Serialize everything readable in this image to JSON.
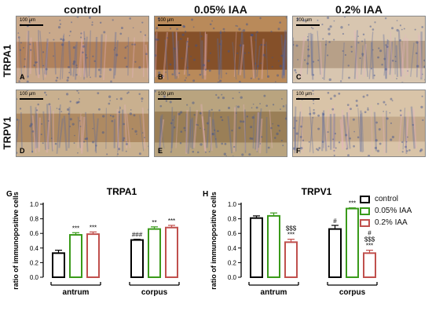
{
  "micrographs": {
    "columns": [
      "control",
      "0.05% IAA",
      "0.2% IAA"
    ],
    "rows": [
      "TRPA1",
      "TRPV1"
    ],
    "scale_label": "100 µm",
    "panels": [
      {
        "label": "A",
        "tint": "#c9a98b",
        "stain": "#8b4513",
        "level": 0.25
      },
      {
        "label": "B",
        "tint": "#b98a5a",
        "stain": "#6b3410",
        "level": 0.75
      },
      {
        "label": "C",
        "tint": "#d8c6b0",
        "stain": "#8a6a50",
        "level": 0.3
      },
      {
        "label": "D",
        "tint": "#c9b08f",
        "stain": "#8b5a2b",
        "level": 0.35
      },
      {
        "label": "E",
        "tint": "#b9a47f",
        "stain": "#7a5a30",
        "level": 0.45
      },
      {
        "label": "F",
        "tint": "#d9c4a8",
        "stain": "#9a7a58",
        "level": 0.2
      }
    ]
  },
  "legend": {
    "items": [
      {
        "label": "control",
        "color": "#000000"
      },
      {
        "label": "0.05% IAA",
        "color": "#3a9a1a"
      },
      {
        "label": "0.2% IAA",
        "color": "#c0504d"
      }
    ]
  },
  "chart_data": [
    {
      "type": "bar",
      "panel_label": "G",
      "title": "TRPA1",
      "ylabel": "ratio of immunopositive cells",
      "ylim": [
        0,
        1.0
      ],
      "yticks": [
        "0.0",
        "0.2",
        "0.4",
        "0.6",
        "0.8",
        "1.0"
      ],
      "categories": [
        "antrum",
        "corpus"
      ],
      "series": [
        {
          "name": "control",
          "values": [
            0.33,
            0.51
          ],
          "errors": [
            0.04,
            0.01
          ],
          "annotations": [
            "",
            "###"
          ]
        },
        {
          "name": "0.05% IAA",
          "values": [
            0.58,
            0.66
          ],
          "errors": [
            0.03,
            0.03
          ],
          "annotations": [
            "***",
            "**"
          ]
        },
        {
          "name": "0.2% IAA",
          "values": [
            0.59,
            0.68
          ],
          "errors": [
            0.03,
            0.03
          ],
          "annotations": [
            "***",
            "***"
          ]
        }
      ]
    },
    {
      "type": "bar",
      "panel_label": "H",
      "title": "TRPV1",
      "ylabel": "ratio of immunopositive cells",
      "ylim": [
        0,
        1.0
      ],
      "yticks": [
        "0.0",
        "0.2",
        "0.4",
        "0.6",
        "0.8",
        "1.0"
      ],
      "categories": [
        "antrum",
        "corpus"
      ],
      "series": [
        {
          "name": "control",
          "values": [
            0.81,
            0.66
          ],
          "errors": [
            0.03,
            0.05
          ],
          "annotations": [
            "",
            "#"
          ]
        },
        {
          "name": "0.05% IAA",
          "values": [
            0.84,
            0.94
          ],
          "errors": [
            0.04,
            0.01
          ],
          "annotations": [
            "",
            "***"
          ]
        },
        {
          "name": "0.2% IAA",
          "values": [
            0.48,
            0.33
          ],
          "errors": [
            0.04,
            0.04
          ],
          "annotations": [
            "$$$\n***",
            "#\n$$$\n***"
          ]
        }
      ]
    }
  ]
}
